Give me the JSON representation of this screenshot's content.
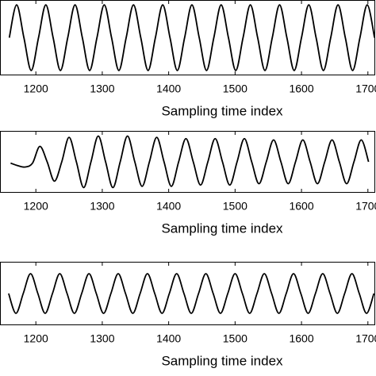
{
  "chart_data": [
    {
      "type": "line",
      "xlabel": "Sampling time index",
      "xlim": [
        1146,
        1711
      ],
      "ylim": [
        -1.15,
        1.15
      ],
      "xticks": [
        1200,
        1300,
        1400,
        1500,
        1600,
        1700
      ],
      "x": [
        1160,
        1171,
        1182,
        1193,
        1204,
        1215,
        1226,
        1237,
        1248,
        1259,
        1270,
        1281,
        1292,
        1303,
        1314,
        1325,
        1336,
        1347,
        1358,
        1369,
        1380,
        1391,
        1402,
        1413,
        1424,
        1435,
        1446,
        1457,
        1468,
        1479,
        1490,
        1501,
        1512,
        1523,
        1534,
        1545,
        1556,
        1567,
        1578,
        1589,
        1600,
        1611,
        1622,
        1633,
        1644,
        1655,
        1666,
        1677,
        1688,
        1699,
        1710
      ],
      "series": [
        {
          "color": "#000000",
          "values": [
            0,
            1,
            0,
            -1,
            0,
            1,
            0,
            -1,
            0,
            1,
            0,
            -1,
            0,
            1,
            0,
            -1,
            0,
            1,
            0,
            -1,
            0,
            1,
            0,
            -1,
            0,
            1,
            0,
            -1,
            0,
            1,
            0,
            -1,
            0,
            1,
            0,
            -1,
            0,
            1,
            0,
            -1,
            0,
            1,
            0,
            -1,
            0,
            1,
            0,
            -1,
            0,
            1,
            0
          ]
        }
      ]
    },
    {
      "type": "line",
      "xlabel": "Sampling time index",
      "xlim": [
        1146,
        1711
      ],
      "ylim": [
        -1.2,
        1.2
      ],
      "xticks": [
        1200,
        1300,
        1400,
        1500,
        1600,
        1700
      ],
      "x": [
        1162,
        1173,
        1184,
        1195,
        1206,
        1217,
        1228,
        1239,
        1250,
        1261,
        1272,
        1283,
        1294,
        1305,
        1316,
        1327,
        1338,
        1349,
        1360,
        1371,
        1382,
        1393,
        1404,
        1415,
        1426,
        1437,
        1448,
        1459,
        1470,
        1481,
        1492,
        1503,
        1514,
        1525,
        1536,
        1547,
        1558,
        1569,
        1580,
        1591,
        1602,
        1613,
        1624,
        1635,
        1646,
        1657,
        1668,
        1679,
        1690,
        1701
      ],
      "series": [
        {
          "color": "#000000",
          "values": [
            -0.05,
            -0.15,
            -0.2,
            -0.05,
            0.6,
            0,
            -0.75,
            0,
            0.95,
            0,
            -1,
            0,
            1,
            0,
            -1,
            0,
            1,
            0,
            -0.95,
            0,
            0.95,
            0,
            -0.95,
            0,
            0.9,
            0,
            -0.9,
            0,
            0.9,
            0,
            -0.9,
            0,
            0.9,
            0,
            -0.85,
            0,
            0.85,
            0,
            -0.85,
            0,
            0.85,
            0,
            -0.85,
            0,
            0.85,
            0,
            -0.85,
            0,
            0.85,
            0
          ]
        }
      ]
    },
    {
      "type": "line",
      "xlabel": "Sampling time index",
      "xlim": [
        1146,
        1711
      ],
      "ylim": [
        -1.2,
        1.2
      ],
      "xticks": [
        1200,
        1300,
        1400,
        1500,
        1600,
        1700
      ],
      "x": [
        1159,
        1170,
        1181,
        1192,
        1203,
        1214,
        1225,
        1236,
        1247,
        1258,
        1269,
        1280,
        1291,
        1302,
        1313,
        1324,
        1335,
        1346,
        1357,
        1368,
        1379,
        1390,
        1401,
        1412,
        1423,
        1434,
        1445,
        1456,
        1467,
        1478,
        1489,
        1500,
        1511,
        1522,
        1533,
        1544,
        1555,
        1566,
        1577,
        1588,
        1599,
        1610,
        1621,
        1632,
        1643,
        1654,
        1665,
        1676,
        1687,
        1698,
        1709
      ],
      "series": [
        {
          "color": "#000000",
          "values": [
            0,
            -0.75,
            0,
            0.75,
            0,
            -0.75,
            0,
            0.75,
            0,
            -0.75,
            0,
            0.75,
            0,
            -0.75,
            0,
            0.75,
            0,
            -0.75,
            0,
            0.75,
            0,
            -0.75,
            0,
            0.75,
            0,
            -0.75,
            0,
            0.75,
            0,
            -0.75,
            0,
            0.75,
            0,
            -0.75,
            0,
            0.75,
            0,
            -0.75,
            0,
            0.75,
            0,
            -0.75,
            0,
            0.75,
            0,
            -0.75,
            0,
            0.75,
            0,
            -0.75,
            0
          ]
        }
      ]
    }
  ]
}
